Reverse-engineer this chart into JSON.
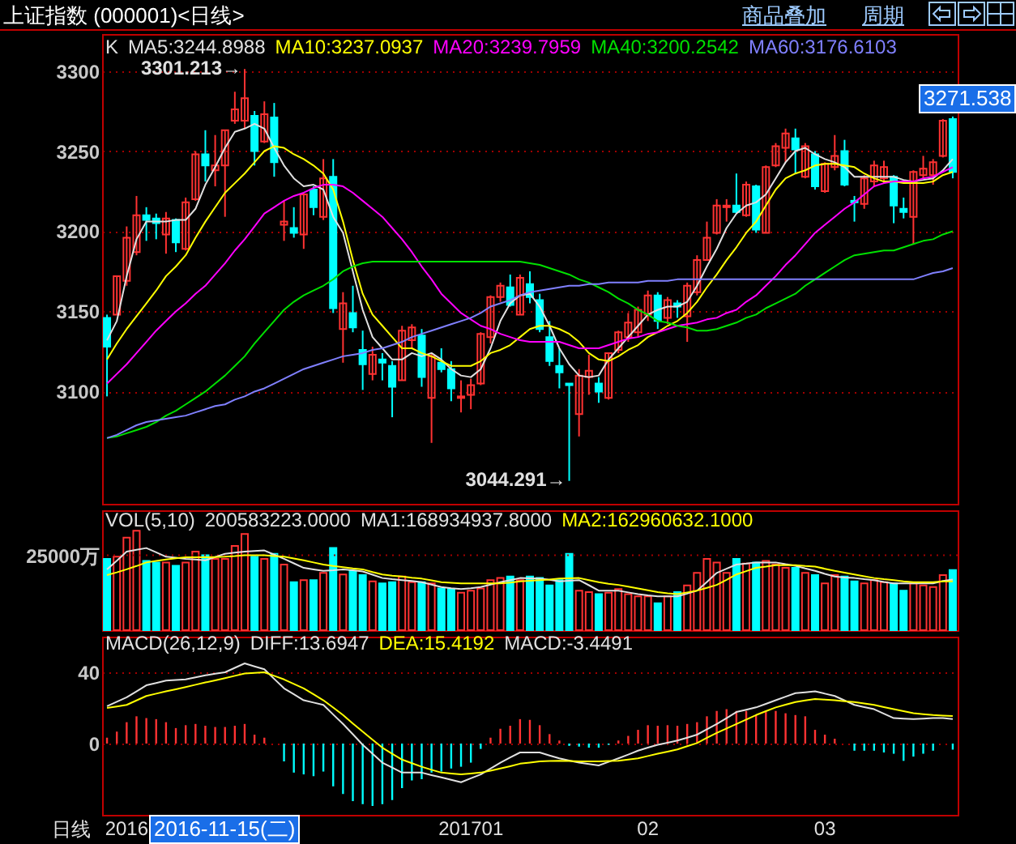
{
  "chart_data": [
    {
      "type": "candlestick",
      "title": "上证指数 (000001)<日线>",
      "legend_title": "K",
      "legend": "top left",
      "grid": "y",
      "tick_labels": "y",
      "categories": [
        null,
        null,
        "2016",
        null,
        null,
        null,
        null,
        null,
        null,
        null,
        null,
        null,
        null,
        null,
        null,
        null,
        null,
        null,
        null,
        null,
        null,
        null,
        null,
        null,
        null,
        null,
        null,
        null,
        null,
        null,
        null,
        null,
        null,
        null,
        null,
        null,
        null,
        "201701",
        null,
        null,
        null,
        null,
        null,
        null,
        null,
        null,
        null,
        null,
        null,
        null,
        null,
        null,
        null,
        null,
        null,
        "02",
        null,
        null,
        null,
        null,
        null,
        null,
        null,
        null,
        null,
        null,
        null,
        null,
        null,
        null,
        null,
        null,
        null,
        "03",
        null,
        null,
        null,
        null,
        null,
        null,
        null,
        null,
        null,
        null,
        null,
        null,
        null
      ],
      "ohlc": [
        [
          3146,
          3148,
          3097,
          3128
        ],
        [
          3148,
          3172,
          3148,
          3172
        ],
        [
          3169,
          3203,
          3166,
          3196
        ],
        [
          3187,
          3222,
          3185,
          3210
        ],
        [
          3210,
          3215,
          3194,
          3207
        ],
        [
          3208,
          3211,
          3195,
          3205
        ],
        [
          3198,
          3212,
          3186,
          3208
        ],
        [
          3207,
          3208,
          3187,
          3193
        ],
        [
          3189,
          3221,
          3188,
          3218
        ],
        [
          3220,
          3250,
          3219,
          3248
        ],
        [
          3248,
          3263,
          3231,
          3241
        ],
        [
          3238,
          3260,
          3228,
          3241
        ],
        [
          3241,
          3263,
          3209,
          3263
        ],
        [
          3269,
          3287,
          3267,
          3276
        ],
        [
          3269,
          3301.213,
          3264,
          3283
        ],
        [
          3272,
          3275,
          3241,
          3250
        ],
        [
          3256,
          3281,
          3255,
          3273
        ],
        [
          3271,
          3280,
          3234,
          3243
        ],
        [
          3204,
          3219,
          3194,
          3206
        ],
        [
          3202,
          3215,
          3196,
          3199
        ],
        [
          3198,
          3223,
          3189,
          3223
        ],
        [
          3226,
          3228,
          3210,
          3215
        ],
        [
          3209,
          3245,
          3207,
          3233
        ],
        [
          3234,
          3245,
          3149,
          3152
        ],
        [
          3139,
          3162,
          3118,
          3155
        ],
        [
          3149,
          3166,
          3137,
          3140
        ],
        [
          3126,
          3138,
          3101,
          3117
        ],
        [
          3111,
          3128,
          3107,
          3123
        ],
        [
          3120,
          3124,
          3107,
          3118
        ],
        [
          3116,
          3119,
          3084,
          3103
        ],
        [
          3107,
          3141,
          3107,
          3138
        ],
        [
          3132,
          3142,
          3127,
          3140
        ],
        [
          3135,
          3139,
          3103,
          3109
        ],
        [
          3096,
          3124,
          3068,
          3122
        ],
        [
          3118,
          3127,
          3112,
          3114
        ],
        [
          3114,
          3119,
          3094,
          3102
        ],
        [
          3096,
          3107,
          3087,
          3097
        ],
        [
          3098,
          3108,
          3089,
          3104
        ],
        [
          3105,
          3137,
          3104,
          3136
        ],
        [
          3134,
          3160,
          3130,
          3159
        ],
        [
          3159,
          3168,
          3156,
          3166
        ],
        [
          3165,
          3173,
          3153,
          3154
        ],
        [
          3148,
          3173,
          3148,
          3171
        ],
        [
          3167,
          3175,
          3155,
          3159
        ],
        [
          3157,
          3161,
          3137,
          3139
        ],
        [
          3134,
          3144,
          3116,
          3119
        ],
        [
          3116,
          3127,
          3102,
          3112
        ],
        [
          3105,
          3105,
          3044.291,
          3104
        ],
        [
          3086,
          3114,
          3072,
          3110
        ],
        [
          3109,
          3123,
          3098,
          3113
        ],
        [
          3105,
          3109,
          3093,
          3100
        ],
        [
          3096,
          3124,
          3095,
          3124
        ],
        [
          3126,
          3138,
          3124,
          3137
        ],
        [
          3134,
          3149,
          3131,
          3143
        ],
        [
          3137,
          3153,
          3134,
          3151
        ],
        [
          3148,
          3163,
          3144,
          3160
        ],
        [
          3160,
          3162,
          3139,
          3144
        ],
        [
          3146,
          3159,
          3142,
          3157
        ],
        [
          3155,
          3157,
          3146,
          3153
        ],
        [
          3147,
          3168,
          3131,
          3166
        ],
        [
          3162,
          3185,
          3160,
          3182
        ],
        [
          3182,
          3206,
          3182,
          3196
        ],
        [
          3199,
          3220,
          3198,
          3216
        ],
        [
          3215,
          3220,
          3206,
          3216
        ],
        [
          3216,
          3236,
          3211,
          3212
        ],
        [
          3210,
          3231,
          3209,
          3229
        ],
        [
          3228,
          3229,
          3199,
          3201
        ],
        [
          3199,
          3241,
          3199,
          3240
        ],
        [
          3241,
          3255,
          3240,
          3253
        ],
        [
          3252,
          3264,
          3243,
          3261
        ],
        [
          3258,
          3264,
          3236,
          3251
        ],
        [
          3234,
          3255,
          3233,
          3253
        ],
        [
          3248,
          3250,
          3226,
          3228
        ],
        [
          3225,
          3243,
          3224,
          3242
        ],
        [
          3240,
          3260,
          3238,
          3247
        ],
        [
          3250,
          3257,
          3228,
          3229
        ],
        [
          3219,
          3222,
          3206,
          3218
        ],
        [
          3217,
          3235,
          3214,
          3233
        ],
        [
          3231,
          3244,
          3228,
          3241
        ],
        [
          3233,
          3244,
          3230,
          3240
        ],
        [
          3234,
          3235,
          3205,
          3216
        ],
        [
          3214,
          3221,
          3208,
          3212
        ],
        [
          3209,
          3238,
          3192,
          3237
        ],
        [
          3235,
          3247,
          3233,
          3239
        ],
        [
          3235,
          3245,
          3229,
          3243
        ],
        [
          3247,
          3270,
          3246,
          3269
        ],
        [
          3270,
          3271.538,
          3233,
          3237
        ]
      ],
      "colors": [
        "#00ffff",
        "#ff3232",
        "#ff3232",
        "#ff3232",
        "#00ffff",
        "#00ffff",
        "#ff3232",
        "#00ffff",
        "#ff3232",
        "#ff3232",
        "#00ffff",
        "#ff3232",
        "#ff3232",
        "#ff3232",
        "#ff3232",
        "#00ffff",
        "#ff3232",
        "#00ffff",
        "#ff3232",
        "#00ffff",
        "#ff3232",
        "#00ffff",
        "#ff3232",
        "#00ffff",
        "#ff3232",
        "#00ffff",
        "#00ffff",
        "#ff3232",
        "#00ffff",
        "#00ffff",
        "#ff3232",
        "#ff3232",
        "#00ffff",
        "#ff3232",
        "#00ffff",
        "#00ffff",
        "#ff3232",
        "#ff3232",
        "#ff3232",
        "#ff3232",
        "#ff3232",
        "#00ffff",
        "#ff3232",
        "#00ffff",
        "#00ffff",
        "#00ffff",
        "#00ffff",
        "#00ffff",
        "#ff3232",
        "#ff3232",
        "#00ffff",
        "#ff3232",
        "#ff3232",
        "#ff3232",
        "#ff3232",
        "#ff3232",
        "#00ffff",
        "#ff3232",
        "#00ffff",
        "#ff3232",
        "#ff3232",
        "#ff3232",
        "#ff3232",
        "#ff3232",
        "#00ffff",
        "#ff3232",
        "#00ffff",
        "#ff3232",
        "#ff3232",
        "#ff3232",
        "#00ffff",
        "#ff3232",
        "#00ffff",
        "#ff3232",
        "#ff3232",
        "#00ffff",
        "#00ffff",
        "#ff3232",
        "#ff3232",
        "#ff3232",
        "#00ffff",
        "#00ffff",
        "#ff3232",
        "#ff3232",
        "#ff3232",
        "#ff3232",
        "#00ffff"
      ],
      "series": [
        {
          "name": "MA5:3244.8988",
          "type": "line",
          "color": "#e0e0e0",
          "values": [
            3132,
            3144,
            3172,
            3195,
            3206,
            3206,
            3206,
            3207,
            3207,
            3214,
            3229,
            3240,
            3252,
            3262,
            3264,
            3267,
            3264,
            3252,
            3241,
            3233,
            3228,
            3229,
            3226,
            3209,
            3199,
            3175,
            3151,
            3134,
            3127,
            3120,
            3120,
            3124,
            3122,
            3124,
            3120,
            3114,
            3110,
            3109,
            3114,
            3127,
            3144,
            3155,
            3160,
            3161,
            3153,
            3141,
            3127,
            3117,
            3110,
            3109,
            3110,
            3120,
            3127,
            3134,
            3141,
            3148,
            3151,
            3153,
            3153,
            3156,
            3166,
            3178,
            3189,
            3202,
            3211,
            3216,
            3218,
            3223,
            3233,
            3243,
            3250,
            3252,
            3248,
            3245,
            3243,
            3240,
            3234,
            3234,
            3234,
            3234,
            3234,
            3232,
            3231,
            3232,
            3233,
            3238,
            3245
          ]
        },
        {
          "name": "MA10:3237.0937",
          "type": "line",
          "color": "#ffff00",
          "values": [
            3120,
            3130,
            3139,
            3147,
            3155,
            3163,
            3172,
            3178,
            3185,
            3196,
            3206,
            3215,
            3224,
            3230,
            3236,
            3243,
            3250,
            3253,
            3252,
            3248,
            3245,
            3241,
            3236,
            3226,
            3206,
            3182,
            3161,
            3148,
            3141,
            3134,
            3127,
            3127,
            3124,
            3122,
            3119,
            3116,
            3116,
            3116,
            3119,
            3124,
            3126,
            3129,
            3134,
            3139,
            3141,
            3141,
            3139,
            3136,
            3131,
            3124,
            3120,
            3119,
            3122,
            3126,
            3129,
            3134,
            3137,
            3141,
            3144,
            3149,
            3156,
            3165,
            3173,
            3182,
            3190,
            3199,
            3206,
            3216,
            3226,
            3233,
            3236,
            3238,
            3241,
            3242,
            3242,
            3241,
            3240,
            3236,
            3233,
            3231,
            3231,
            3230,
            3230,
            3230,
            3231,
            3235,
            3237
          ]
        },
        {
          "name": "MA20:3239.7959",
          "type": "line",
          "color": "#ff00ff",
          "values": [
            3105,
            3111,
            3117,
            3124,
            3131,
            3138,
            3144,
            3150,
            3155,
            3161,
            3166,
            3173,
            3180,
            3188,
            3195,
            3203,
            3211,
            3215,
            3219,
            3222,
            3224,
            3227,
            3229,
            3229,
            3228,
            3224,
            3219,
            3214,
            3209,
            3202,
            3195,
            3187,
            3178,
            3170,
            3161,
            3155,
            3149,
            3145,
            3141,
            3139,
            3136,
            3134,
            3132,
            3131,
            3131,
            3131,
            3131,
            3129,
            3127,
            3127,
            3127,
            3129,
            3131,
            3133,
            3134,
            3136,
            3137,
            3139,
            3141,
            3142,
            3143,
            3145,
            3146,
            3149,
            3151,
            3156,
            3160,
            3166,
            3172,
            3179,
            3185,
            3192,
            3199,
            3204,
            3209,
            3214,
            3218,
            3223,
            3228,
            3230,
            3231,
            3231,
            3231,
            3233,
            3234,
            3237,
            3240
          ]
        },
        {
          "name": "MA40:3200.2542",
          "type": "line",
          "color": "#00e000",
          "values": [
            3071,
            3072,
            3074,
            3076,
            3078,
            3081,
            3085,
            3088,
            3092,
            3096,
            3100,
            3105,
            3110,
            3116,
            3122,
            3130,
            3137,
            3144,
            3151,
            3156,
            3160,
            3163,
            3166,
            3170,
            3175,
            3178,
            3180,
            3181,
            3181,
            3181,
            3181,
            3181,
            3181,
            3181,
            3181,
            3181,
            3181,
            3181,
            3181,
            3181,
            3181,
            3181,
            3181,
            3180,
            3179,
            3177,
            3175,
            3173,
            3170,
            3168,
            3165,
            3162,
            3158,
            3155,
            3151,
            3148,
            3144,
            3143,
            3141,
            3140,
            3138,
            3138,
            3139,
            3141,
            3143,
            3146,
            3148,
            3152,
            3155,
            3158,
            3161,
            3166,
            3170,
            3174,
            3178,
            3182,
            3185,
            3186,
            3187,
            3188,
            3188,
            3190,
            3192,
            3194,
            3195,
            3198,
            3200
          ]
        },
        {
          "name": "MA60:3176.6103",
          "type": "line",
          "color": "#8080ff",
          "values": [
            3071,
            3073,
            3076,
            3079,
            3081,
            3082,
            3083,
            3084,
            3085,
            3087,
            3089,
            3091,
            3092,
            3095,
            3097,
            3100,
            3102,
            3105,
            3108,
            3111,
            3114,
            3116,
            3118,
            3120,
            3122,
            3123,
            3124,
            3126,
            3127,
            3129,
            3131,
            3134,
            3136,
            3138,
            3140,
            3142,
            3144,
            3146,
            3149,
            3153,
            3155,
            3157,
            3160,
            3162,
            3163,
            3164,
            3165,
            3166,
            3166,
            3167,
            3167,
            3168,
            3168,
            3168,
            3168,
            3169,
            3169,
            3169,
            3170,
            3170,
            3170,
            3170,
            3170,
            3170,
            3170,
            3170,
            3170,
            3170,
            3170,
            3170,
            3170,
            3170,
            3170,
            3170,
            3170,
            3170,
            3170,
            3170,
            3170,
            3170,
            3170,
            3170,
            3170,
            3172,
            3174,
            3175,
            3177
          ]
        }
      ],
      "ylim": [
        3030,
        3323
      ],
      "yticks": [
        3100,
        3150,
        3200,
        3250,
        3300
      ],
      "annotations": [
        "3301.213→",
        "3044.291→",
        "3271.538",
        "商品叠加",
        "周期"
      ]
    },
    {
      "type": "bar",
      "legend_title": "VOL(5,10)",
      "legend": "top left",
      "tick_labels": "y",
      "ref_lines": [
        {
          "axis": "y",
          "value": 25000,
          "color": "#a00000",
          "line_style": "dotted"
        }
      ],
      "categories": [
        null,
        null,
        "2016",
        null,
        null,
        null,
        null,
        null,
        null,
        null,
        null,
        null,
        null,
        null,
        null,
        null,
        null,
        null,
        null,
        null,
        null,
        null,
        null,
        null,
        null,
        null,
        null,
        null,
        null,
        null,
        null,
        null,
        null,
        null,
        null,
        null,
        null,
        "201701",
        null,
        null,
        null,
        null,
        null,
        null,
        null,
        null,
        null,
        null,
        null,
        null,
        null,
        null,
        null,
        null,
        null,
        "02",
        null,
        null,
        null,
        null,
        null,
        null,
        null,
        null,
        null,
        null,
        null,
        null,
        null,
        null,
        null,
        null,
        null,
        "03",
        null,
        null,
        null,
        null,
        null,
        null,
        null,
        null,
        null,
        null,
        null,
        null,
        null
      ],
      "series": [
        {
          "type": "bar",
          "colors": [
            "#00ffff",
            "#ff3232",
            "#ff3232",
            "#ff3232",
            "#00ffff",
            "#00ffff",
            "#ff3232",
            "#00ffff",
            "#ff3232",
            "#ff3232",
            "#00ffff",
            "#ff3232",
            "#ff3232",
            "#ff3232",
            "#ff3232",
            "#00ffff",
            "#ff3232",
            "#00ffff",
            "#ff3232",
            "#00ffff",
            "#ff3232",
            "#00ffff",
            "#ff3232",
            "#00ffff",
            "#ff3232",
            "#00ffff",
            "#00ffff",
            "#ff3232",
            "#00ffff",
            "#00ffff",
            "#ff3232",
            "#ff3232",
            "#00ffff",
            "#ff3232",
            "#00ffff",
            "#00ffff",
            "#ff3232",
            "#ff3232",
            "#ff3232",
            "#ff3232",
            "#ff3232",
            "#00ffff",
            "#ff3232",
            "#00ffff",
            "#00ffff",
            "#00ffff",
            "#00ffff",
            "#00ffff",
            "#ff3232",
            "#ff3232",
            "#00ffff",
            "#ff3232",
            "#ff3232",
            "#ff3232",
            "#ff3232",
            "#ff3232",
            "#00ffff",
            "#ff3232",
            "#00ffff",
            "#ff3232",
            "#ff3232",
            "#ff3232",
            "#ff3232",
            "#ff3232",
            "#00ffff",
            "#ff3232",
            "#00ffff",
            "#ff3232",
            "#ff3232",
            "#ff3232",
            "#00ffff",
            "#ff3232",
            "#00ffff",
            "#ff3232",
            "#ff3232",
            "#00ffff",
            "#00ffff",
            "#ff3232",
            "#ff3232",
            "#ff3232",
            "#00ffff",
            "#00ffff",
            "#ff3232",
            "#ff3232",
            "#ff3232",
            "#ff3232",
            "#00ffff"
          ],
          "values": [
            23800,
            24500,
            30900,
            33200,
            23100,
            22600,
            22600,
            21500,
            22600,
            26200,
            25000,
            23800,
            23800,
            28100,
            32100,
            24500,
            23800,
            25500,
            21900,
            16000,
            16700,
            16700,
            19100,
            27400,
            18600,
            19800,
            18400,
            16300,
            15600,
            16000,
            17900,
            16000,
            16000,
            15600,
            13900,
            13700,
            12500,
            13200,
            13900,
            16700,
            17400,
            17900,
            16700,
            17900,
            17400,
            14900,
            16700,
            25500,
            13200,
            12700,
            12000,
            12500,
            13700,
            12000,
            11300,
            11300,
            9000,
            11300,
            12700,
            14900,
            19100,
            23800,
            22600,
            19100,
            23800,
            22200,
            22600,
            23100,
            21900,
            20800,
            20800,
            19100,
            18400,
            15600,
            18400,
            17900,
            16300,
            15600,
            16700,
            16000,
            15600,
            13200,
            15600,
            14900,
            14400,
            18400,
            20058
          ]
        },
        {
          "name": "MA1:168934937.8000",
          "type": "line",
          "color": "#e0e0e0",
          "values": [
            20300,
            23200,
            26200,
            26800,
            27400,
            26000,
            24500,
            24200,
            23800,
            23600,
            23300,
            24400,
            25500,
            25900,
            26200,
            26400,
            26600,
            25200,
            23800,
            22300,
            20800,
            20300,
            19800,
            20000,
            20300,
            20000,
            19600,
            18500,
            17400,
            17000,
            16700,
            16400,
            16000,
            15200,
            14400,
            14000,
            13700,
            14000,
            14400,
            15200,
            16000,
            16700,
            17400,
            17300,
            17200,
            16800,
            16300,
            16500,
            16700,
            15000,
            13200,
            13200,
            13200,
            12600,
            12000,
            11600,
            11300,
            11300,
            11300,
            12200,
            13200,
            16100,
            19100,
            20500,
            21900,
            22200,
            22600,
            22600,
            22600,
            22000,
            21500,
            20600,
            19800,
            18800,
            17900,
            17600,
            17400,
            17000,
            16700,
            16100,
            15600,
            15600,
            15600,
            15600,
            15600,
            16400,
            16893
          ]
        },
        {
          "name": "MA2:162960632.1000",
          "type": "line",
          "color": "#ffff00",
          "values": [
            18400,
            19300,
            20300,
            21400,
            22600,
            23100,
            23600,
            24000,
            24300,
            24300,
            24300,
            24400,
            24500,
            24700,
            25000,
            25000,
            25000,
            24700,
            24500,
            23900,
            23300,
            22600,
            21900,
            21400,
            21000,
            20600,
            20300,
            19400,
            18600,
            18200,
            17900,
            17500,
            17200,
            16600,
            16000,
            15800,
            15600,
            15600,
            15600,
            15600,
            15600,
            15900,
            16300,
            16500,
            16700,
            16900,
            17200,
            17300,
            17400,
            16700,
            16000,
            15500,
            15100,
            14500,
            13900,
            13300,
            12700,
            12300,
            12000,
            12600,
            13200,
            14100,
            15100,
            16800,
            18600,
            19700,
            20800,
            21200,
            21700,
            21700,
            21700,
            21400,
            21200,
            20500,
            19800,
            19200,
            18600,
            18000,
            17400,
            17000,
            16700,
            16300,
            16000,
            16000,
            16000,
            16300,
            16296
          ]
        }
      ],
      "ylim": [
        0,
        40000
      ],
      "yticks": [
        {
          "value": 25000,
          "label": "25000万"
        }
      ],
      "annotations": [
        "200583223.0000"
      ]
    },
    {
      "type": "bar",
      "legend_title": "MACD(26,12,9)",
      "legend": "top left",
      "grid": "y",
      "xlabel": "日线",
      "categories": [
        null,
        null,
        "2016",
        null,
        null,
        null,
        null,
        null,
        null,
        null,
        null,
        null,
        null,
        null,
        null,
        null,
        null,
        null,
        null,
        null,
        null,
        null,
        null,
        null,
        null,
        null,
        null,
        null,
        null,
        null,
        null,
        null,
        null,
        null,
        null,
        null,
        null,
        "201701",
        null,
        null,
        null,
        null,
        null,
        null,
        null,
        null,
        null,
        null,
        null,
        null,
        null,
        null,
        null,
        null,
        null,
        "02",
        null,
        null,
        null,
        null,
        null,
        null,
        null,
        null,
        null,
        null,
        null,
        null,
        null,
        null,
        null,
        null,
        null,
        "03",
        null,
        null,
        null,
        null,
        null,
        null,
        null,
        null,
        null,
        null,
        null,
        null,
        null
      ],
      "series": [
        {
          "name": "DIFF:13.6947",
          "type": "line",
          "color": "#e0e0e0",
          "values": [
            21,
            23.5,
            26,
            29.3,
            32.7,
            34,
            35.3,
            35.7,
            36,
            37.2,
            38.3,
            39.2,
            40,
            42.5,
            45,
            43.3,
            41.7,
            36.3,
            31,
            27.7,
            24.3,
            23,
            21.7,
            16.3,
            11,
            5.2,
            -0.7,
            -5.7,
            -10.7,
            -13.5,
            -16.3,
            -16.3,
            -16.3,
            -17.7,
            -19,
            -20.3,
            -21.7,
            -19.5,
            -17.3,
            -14,
            -10.7,
            -7.8,
            -5,
            -5,
            -5,
            -6.7,
            -8.3,
            -9.5,
            -10.7,
            -11.5,
            -12.3,
            -10.3,
            -8.3,
            -6.2,
            -4,
            -2.3,
            -0.7,
            0.5,
            1.7,
            3.3,
            5,
            8,
            11,
            14.3,
            17.7,
            19,
            20.3,
            22.3,
            24.3,
            26.3,
            28.3,
            28.8,
            29.3,
            28,
            26.7,
            24.2,
            21.7,
            20.5,
            19.3,
            16.8,
            14.3,
            14,
            13.7,
            14,
            14.3,
            14.3,
            13.7
          ]
        },
        {
          "name": "DEA:15.4192",
          "type": "line",
          "color": "#ffff00",
          "values": [
            20,
            20.8,
            21.7,
            24.2,
            26.7,
            28,
            29.3,
            30.5,
            31.7,
            33,
            34.3,
            35.5,
            36.7,
            38,
            39.3,
            39.7,
            40,
            38,
            36,
            33.5,
            31,
            27.7,
            24.3,
            20.2,
            16,
            11.3,
            6.7,
            2.2,
            -2.3,
            -5.7,
            -9,
            -11,
            -13,
            -14.7,
            -16.3,
            -16.8,
            -17.3,
            -16.8,
            -16.3,
            -15.2,
            -14,
            -12.7,
            -11.3,
            -10.7,
            -10,
            -9.8,
            -9.7,
            -9.8,
            -10,
            -10,
            -10,
            -9.8,
            -9.7,
            -9,
            -8.3,
            -7,
            -5.7,
            -4.5,
            -3.3,
            -1.5,
            0.3,
            3.2,
            6,
            8.5,
            11,
            13.5,
            16,
            18.2,
            20.3,
            21.8,
            23.3,
            24.2,
            25,
            24.7,
            24.3,
            23.8,
            23.3,
            22.5,
            21.7,
            20.5,
            19.3,
            18.2,
            17,
            16.5,
            16,
            15.7,
            15.4
          ]
        },
        {
          "type": "bar",
          "colors": [
            "#ff3232",
            "#ff3232",
            "#ff3232",
            "#ff3232",
            "#ff3232",
            "#ff3232",
            "#ff3232",
            "#ff3232",
            "#ff3232",
            "#ff3232",
            "#ff3232",
            "#ff3232",
            "#ff3232",
            "#ff3232",
            "#ff3232",
            "#ff3232",
            "#ff3232",
            "#ff3232",
            "#00ffff",
            "#00ffff",
            "#00ffff",
            "#00ffff",
            "#00ffff",
            "#00ffff",
            "#00ffff",
            "#00ffff",
            "#00ffff",
            "#00ffff",
            "#00ffff",
            "#00ffff",
            "#00ffff",
            "#00ffff",
            "#00ffff",
            "#00ffff",
            "#00ffff",
            "#00ffff",
            "#00ffff",
            "#00ffff",
            "#00ffff",
            "#ff3232",
            "#ff3232",
            "#ff3232",
            "#ff3232",
            "#ff3232",
            "#ff3232",
            "#ff3232",
            "#ff3232",
            "#00ffff",
            "#00ffff",
            "#00ffff",
            "#00ffff",
            "#00ffff",
            "#ff3232",
            "#ff3232",
            "#ff3232",
            "#ff3232",
            "#ff3232",
            "#ff3232",
            "#ff3232",
            "#ff3232",
            "#ff3232",
            "#ff3232",
            "#ff3232",
            "#ff3232",
            "#ff3232",
            "#ff3232",
            "#ff3232",
            "#ff3232",
            "#ff3232",
            "#ff3232",
            "#ff3232",
            "#ff3232",
            "#ff3232",
            "#ff3232",
            "#ff3232",
            "#00ffff",
            "#00ffff",
            "#00ffff",
            "#00ffff",
            "#00ffff",
            "#00ffff",
            "#00ffff",
            "#00ffff",
            "#00ffff",
            "#00ffff",
            "#00ffff",
            "#00ffff"
          ],
          "values": [
            3.3,
            6.7,
            12,
            15.3,
            14.3,
            13.7,
            12,
            8.7,
            10.3,
            11,
            10,
            9.3,
            9.3,
            10,
            11,
            5,
            3.3,
            null,
            -10,
            -16.3,
            -17.3,
            -18.3,
            -15.7,
            -24,
            -28.3,
            -32.3,
            -34,
            -35,
            -34,
            -31.7,
            -25,
            -20.7,
            -20,
            -16.3,
            -15.7,
            -14,
            -13,
            -10.7,
            -3,
            3.3,
            8.3,
            10,
            13.7,
            13.3,
            10.3,
            5.3,
            1.7,
            -1.3,
            -1.7,
            -2.3,
            -2.3,
            -0.7,
            1.7,
            4.3,
            7.7,
            10.3,
            10,
            10.3,
            10,
            11,
            12,
            15.3,
            18.3,
            19.3,
            18.3,
            18.3,
            16,
            17.7,
            18.3,
            17,
            16,
            15.3,
            7.7,
            5,
            2.7,
            null,
            -4,
            -4,
            -4,
            -5,
            -5.7,
            -9.7,
            -7.3,
            -5.7,
            -4,
            null,
            -3.4
          ]
        }
      ],
      "ylim": [
        -40,
        60
      ],
      "yticks": [
        0,
        40
      ],
      "annotations": [
        "MACD:-3.4491",
        "2016-11-15(二)"
      ]
    }
  ]
}
